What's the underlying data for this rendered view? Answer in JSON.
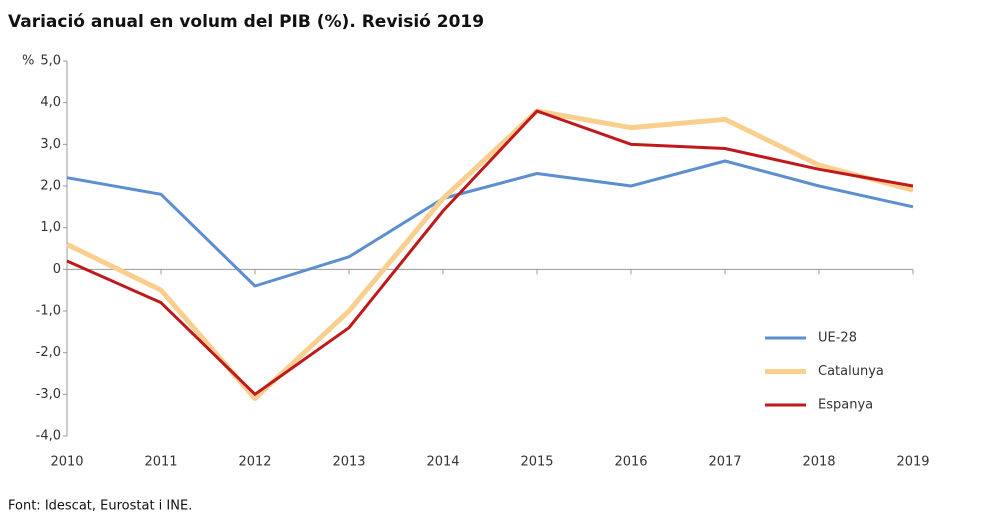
{
  "chart_data": {
    "type": "line",
    "title": "Variació anual en volum del PIB (%). Revisió 2019",
    "y_label": "%",
    "source": "Font: Idescat, Eurostat i INE.",
    "categories": [
      "2010",
      "2011",
      "2012",
      "2013",
      "2014",
      "2015",
      "2016",
      "2017",
      "2018",
      "2019"
    ],
    "series": [
      {
        "name": "UE-28",
        "color": "#5b8fd0",
        "values": [
          2.2,
          1.8,
          -0.4,
          0.3,
          1.7,
          2.3,
          2.0,
          2.6,
          2.0,
          1.5
        ]
      },
      {
        "name": "Catalunya",
        "color": "#f9cf8f",
        "values": [
          0.6,
          -0.5,
          -3.1,
          -1.0,
          1.7,
          3.8,
          3.4,
          3.6,
          2.5,
          1.9
        ]
      },
      {
        "name": "Espanya",
        "color": "#c0191c",
        "values": [
          0.2,
          -0.8,
          -3.0,
          -1.4,
          1.4,
          3.8,
          3.0,
          2.9,
          2.4,
          2.0
        ]
      }
    ],
    "ylim": [
      -4,
      5
    ],
    "yticks": [
      {
        "value": 5,
        "label": "5,0"
      },
      {
        "value": 4,
        "label": "4,0"
      },
      {
        "value": 3,
        "label": "3,0"
      },
      {
        "value": 2,
        "label": "2,0"
      },
      {
        "value": 1,
        "label": "1,0"
      },
      0,
      {
        "value": -1,
        "label": "-1,0"
      },
      {
        "value": -2,
        "label": "-2,0"
      },
      {
        "value": -3,
        "label": "-3,0"
      },
      {
        "value": -4,
        "label": "-4,0"
      }
    ],
    "grid": false,
    "legend": "right"
  }
}
